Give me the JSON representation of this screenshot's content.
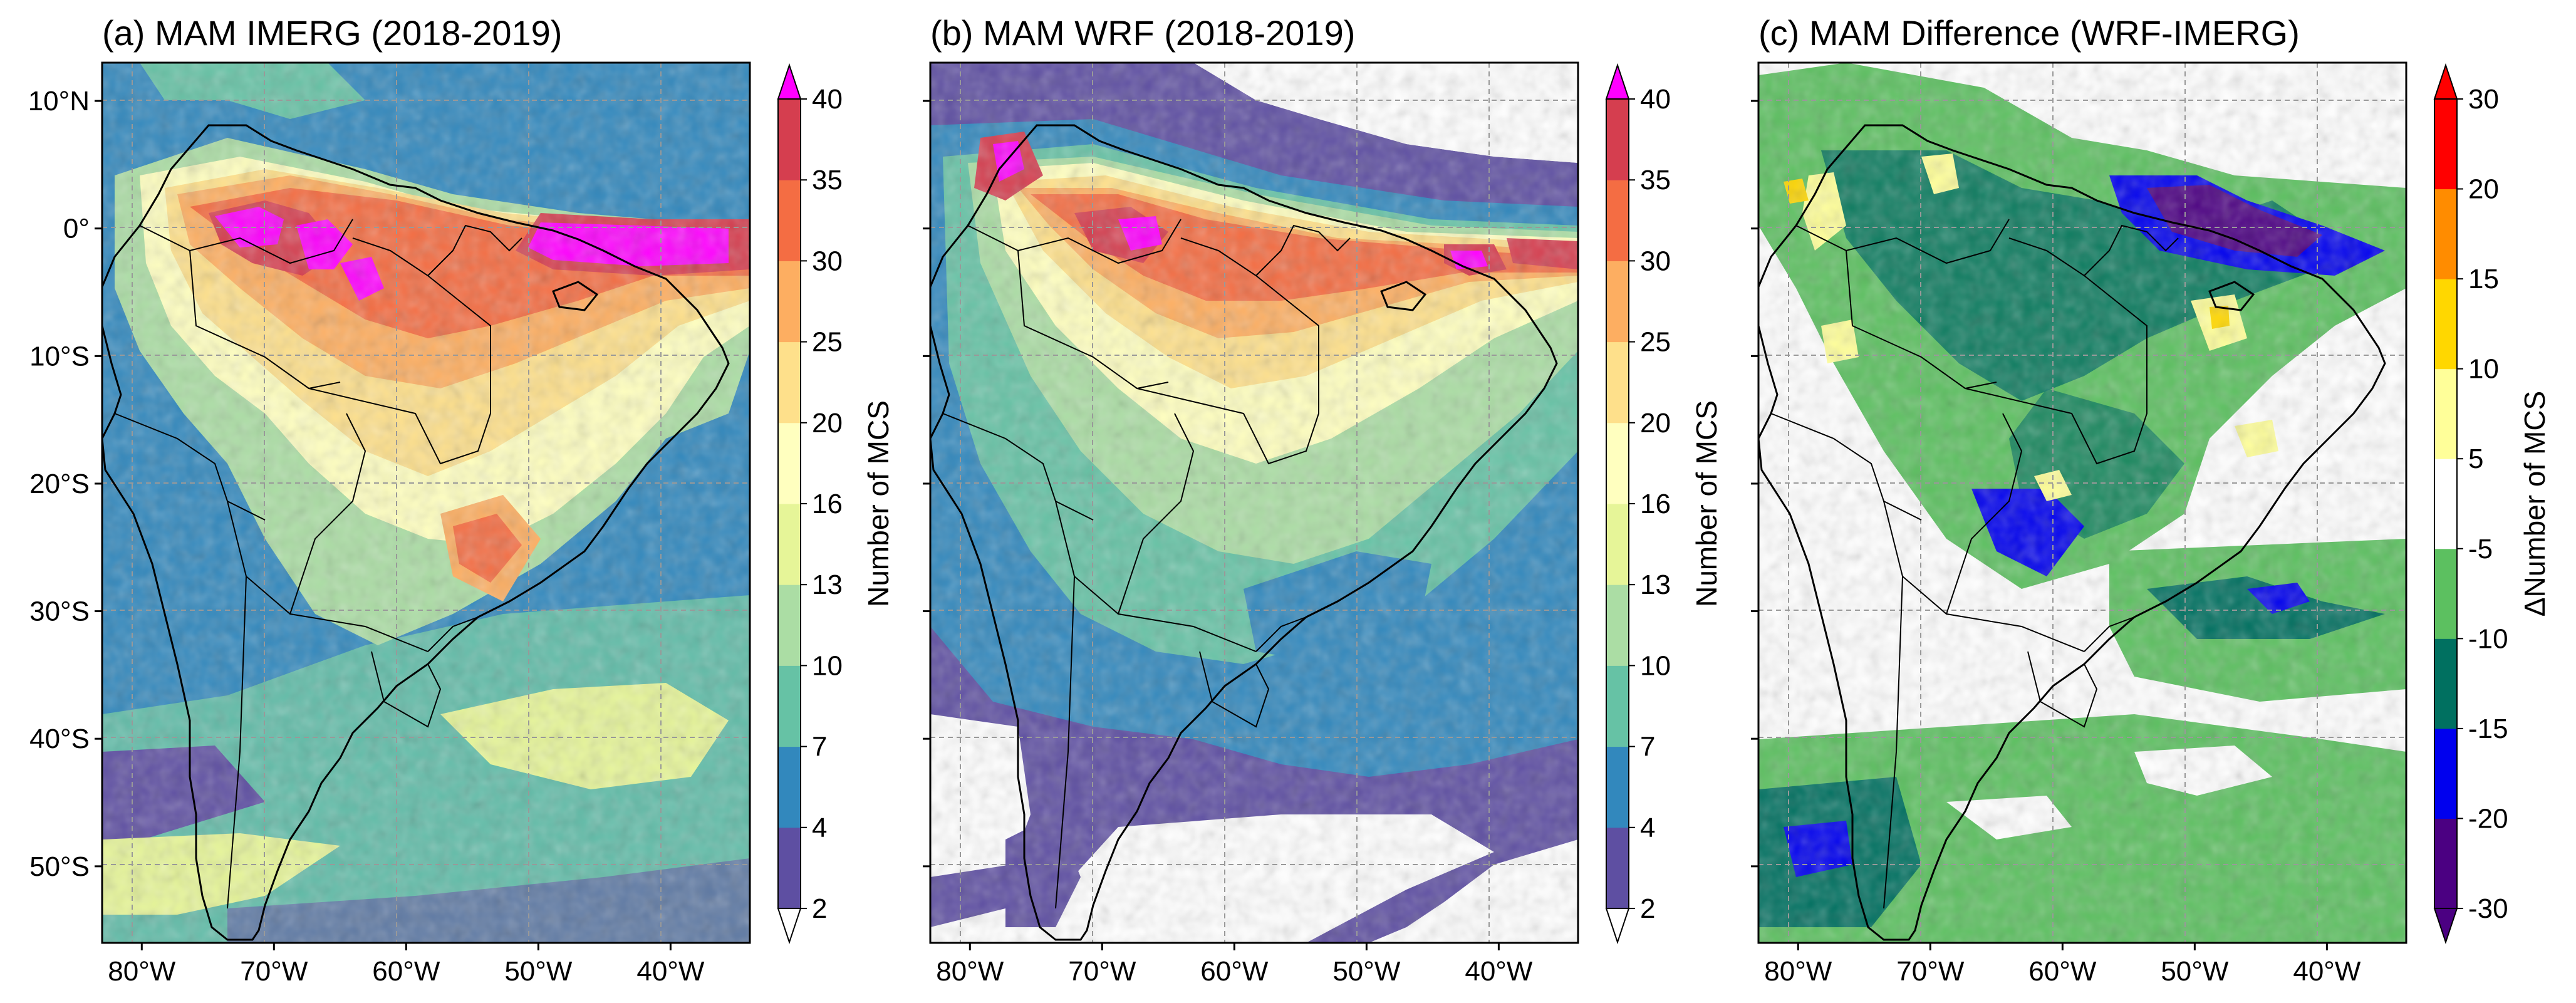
{
  "chart_data": [
    {
      "type": "heatmap",
      "title": "(a) MAM IMERG (2018-2019)",
      "colorbar_label": "Number of MCS",
      "colorbar_ticks": [
        2,
        4,
        7,
        10,
        13,
        16,
        20,
        25,
        30,
        35,
        40
      ],
      "colorbar_colors": [
        "#5e4fa2",
        "#3288bd",
        "#66c2a5",
        "#abdda4",
        "#e6f598",
        "#ffffbf",
        "#fee08b",
        "#fdae61",
        "#f46d43",
        "#d53e4f",
        "#9e0142"
      ],
      "colorbar_extend": "both",
      "colorbar_under_color": "#ffffff",
      "colorbar_over_color": "#ff00ff",
      "xlim": [
        -83,
        -34
      ],
      "ylim": [
        -56,
        13
      ],
      "xticks": [
        -80,
        -70,
        -60,
        -50,
        -40
      ],
      "xtick_labels": [
        "80°W",
        "70°W",
        "60°W",
        "50°W",
        "40°W"
      ],
      "yticks": [
        10,
        0,
        -10,
        -20,
        -30,
        -40,
        -50
      ],
      "ytick_labels": [
        "10°N",
        "0°",
        "10°S",
        "20°S",
        "30°S",
        "40°S",
        "50°S"
      ],
      "grid": true
    },
    {
      "type": "heatmap",
      "title": "(b) MAM WRF (2018-2019)",
      "colorbar_label": "Number of MCS",
      "colorbar_ticks": [
        2,
        4,
        7,
        10,
        13,
        16,
        20,
        25,
        30,
        35,
        40
      ],
      "colorbar_colors": [
        "#5e4fa2",
        "#3288bd",
        "#66c2a5",
        "#abdda4",
        "#e6f598",
        "#ffffbf",
        "#fee08b",
        "#fdae61",
        "#f46d43",
        "#d53e4f",
        "#9e0142"
      ],
      "colorbar_extend": "both",
      "colorbar_under_color": "#ffffff",
      "colorbar_over_color": "#ff00ff",
      "xlim": [
        -83,
        -34
      ],
      "ylim": [
        -56,
        13
      ],
      "xticks": [
        -80,
        -70,
        -60,
        -50,
        -40
      ],
      "xtick_labels": [
        "80°W",
        "70°W",
        "60°W",
        "50°W",
        "40°W"
      ],
      "yticks": [
        10,
        0,
        -10,
        -20,
        -30,
        -40,
        -50
      ],
      "ytick_labels": [
        "",
        "",
        "",
        "",
        "",
        "",
        ""
      ],
      "grid": true
    },
    {
      "type": "heatmap",
      "title": "(c) MAM Difference (WRF-IMERG)",
      "colorbar_label": "ΔNumber of MCS",
      "colorbar_ticks": [
        -30,
        -20,
        -15,
        -10,
        -5,
        5,
        10,
        15,
        20,
        30
      ],
      "colorbar_colors": [
        "#4b0082",
        "#0000ee",
        "#007060",
        "#5cc060",
        "#ffffff",
        "#ffff99",
        "#ffd700",
        "#ff8c00",
        "#ff0000"
      ],
      "colorbar_extend": "both",
      "colorbar_under_color": "#4b0082",
      "colorbar_over_color": "#ff0000",
      "xlim": [
        -83,
        -34
      ],
      "ylim": [
        -56,
        13
      ],
      "xticks": [
        -80,
        -70,
        -60,
        -50,
        -40
      ],
      "xtick_labels": [
        "80°W",
        "70°W",
        "60°W",
        "50°W",
        "40°W"
      ],
      "yticks": [
        10,
        0,
        -10,
        -20,
        -30,
        -40,
        -50
      ],
      "ytick_labels": [
        "",
        "",
        "",
        "",
        "",
        "",
        ""
      ],
      "grid": true
    }
  ]
}
